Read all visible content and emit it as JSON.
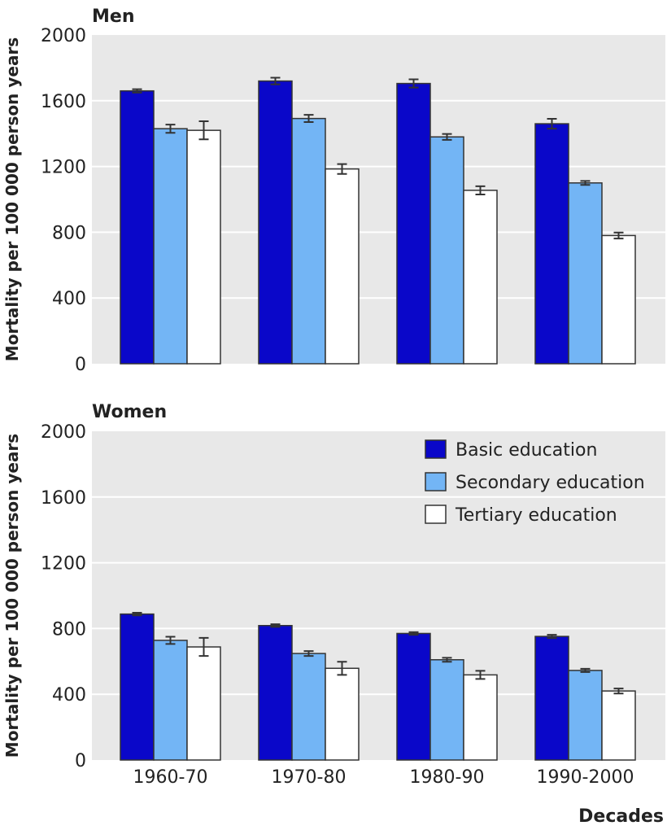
{
  "chart_data": [
    {
      "type": "bar",
      "title": "Men",
      "ylabel": "Mortality per 100 000 person years",
      "xlabel": "",
      "ylim": [
        0,
        2000
      ],
      "yticks": [
        0,
        400,
        800,
        1200,
        1600,
        2000
      ],
      "categories": [
        "1960-70",
        "1970-80",
        "1980-90",
        "1990-2000"
      ],
      "series": [
        {
          "name": "Basic education",
          "color": "#0a07c9",
          "values": [
            1660,
            1720,
            1705,
            1460
          ],
          "errors": [
            10,
            20,
            25,
            30
          ]
        },
        {
          "name": "Secondary education",
          "color": "#73b5f5",
          "values": [
            1430,
            1492,
            1380,
            1100
          ],
          "errors": [
            25,
            22,
            18,
            12
          ]
        },
        {
          "name": "Tertiary education",
          "color": "#ffffff",
          "values": [
            1420,
            1185,
            1055,
            780
          ],
          "errors": [
            55,
            30,
            25,
            18
          ]
        }
      ]
    },
    {
      "type": "bar",
      "title": "Women",
      "ylabel": "Mortality per 100 000 person years",
      "xlabel": "Decades",
      "ylim": [
        0,
        2000
      ],
      "yticks": [
        0,
        400,
        800,
        1200,
        1600,
        2000
      ],
      "categories": [
        "1960-70",
        "1970-80",
        "1980-90",
        "1990-2000"
      ],
      "legend": {
        "position": "top-right"
      },
      "series": [
        {
          "name": "Basic education",
          "color": "#0a07c9",
          "values": [
            888,
            818,
            770,
            752
          ],
          "errors": [
            8,
            8,
            8,
            10
          ]
        },
        {
          "name": "Secondary education",
          "color": "#73b5f5",
          "values": [
            728,
            648,
            610,
            545
          ],
          "errors": [
            22,
            15,
            12,
            10
          ]
        },
        {
          "name": "Tertiary education",
          "color": "#ffffff",
          "values": [
            688,
            558,
            518,
            420
          ],
          "errors": [
            55,
            40,
            25,
            15
          ]
        }
      ]
    }
  ]
}
